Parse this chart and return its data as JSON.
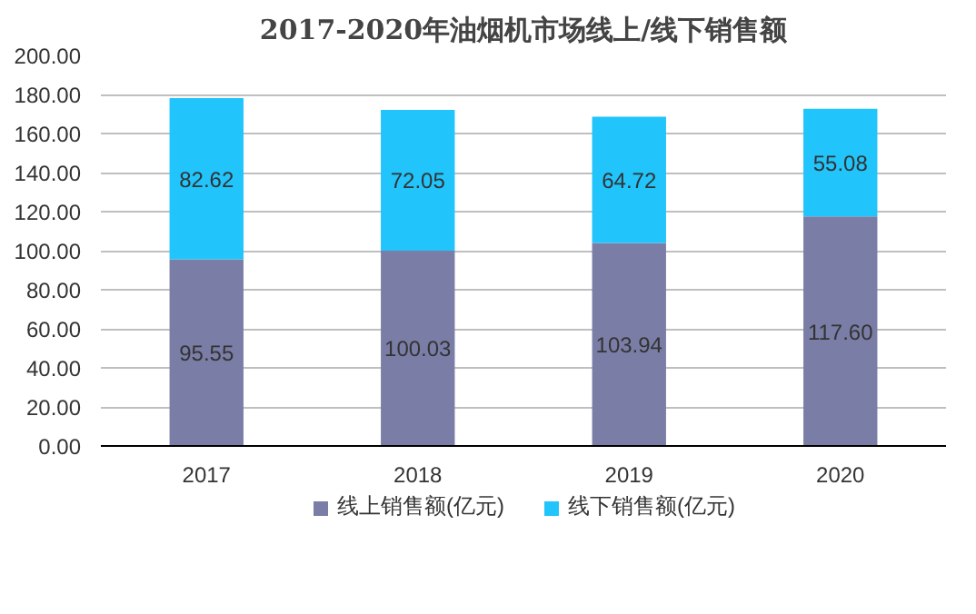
{
  "chart_data": {
    "type": "bar",
    "title": "2017-2020年油烟机市场线上/线下销售额",
    "categories": [
      "2017",
      "2018",
      "2019",
      "2020"
    ],
    "series": [
      {
        "name": "线上销售额(亿元)",
        "color": "#7a7ea6",
        "values": [
          95.55,
          100.03,
          103.94,
          117.6
        ]
      },
      {
        "name": "线下销售额(亿元)",
        "color": "#21c4fb",
        "values": [
          82.62,
          72.05,
          64.72,
          55.08
        ]
      }
    ],
    "value_labels": [
      [
        "95.55",
        "100.03",
        "103.94",
        "117.60"
      ],
      [
        "82.62",
        "72.05",
        "64.72",
        "55.08"
      ]
    ],
    "stacked": true,
    "ylim": [
      0,
      200
    ],
    "yticks": [
      {
        "value": 0,
        "label": "0.00"
      },
      {
        "value": 20,
        "label": "20.00"
      },
      {
        "value": 40,
        "label": "40.00"
      },
      {
        "value": 60,
        "label": "60.00"
      },
      {
        "value": 80,
        "label": "80.00"
      },
      {
        "value": 100,
        "label": "100.00"
      },
      {
        "value": 120,
        "label": "120.00"
      },
      {
        "value": 140,
        "label": "140.00"
      },
      {
        "value": 160,
        "label": "160.00"
      },
      {
        "value": 180,
        "label": "180.00"
      },
      {
        "value": 200,
        "label": "200.00"
      }
    ],
    "grid": "y",
    "legend": "bottom"
  }
}
